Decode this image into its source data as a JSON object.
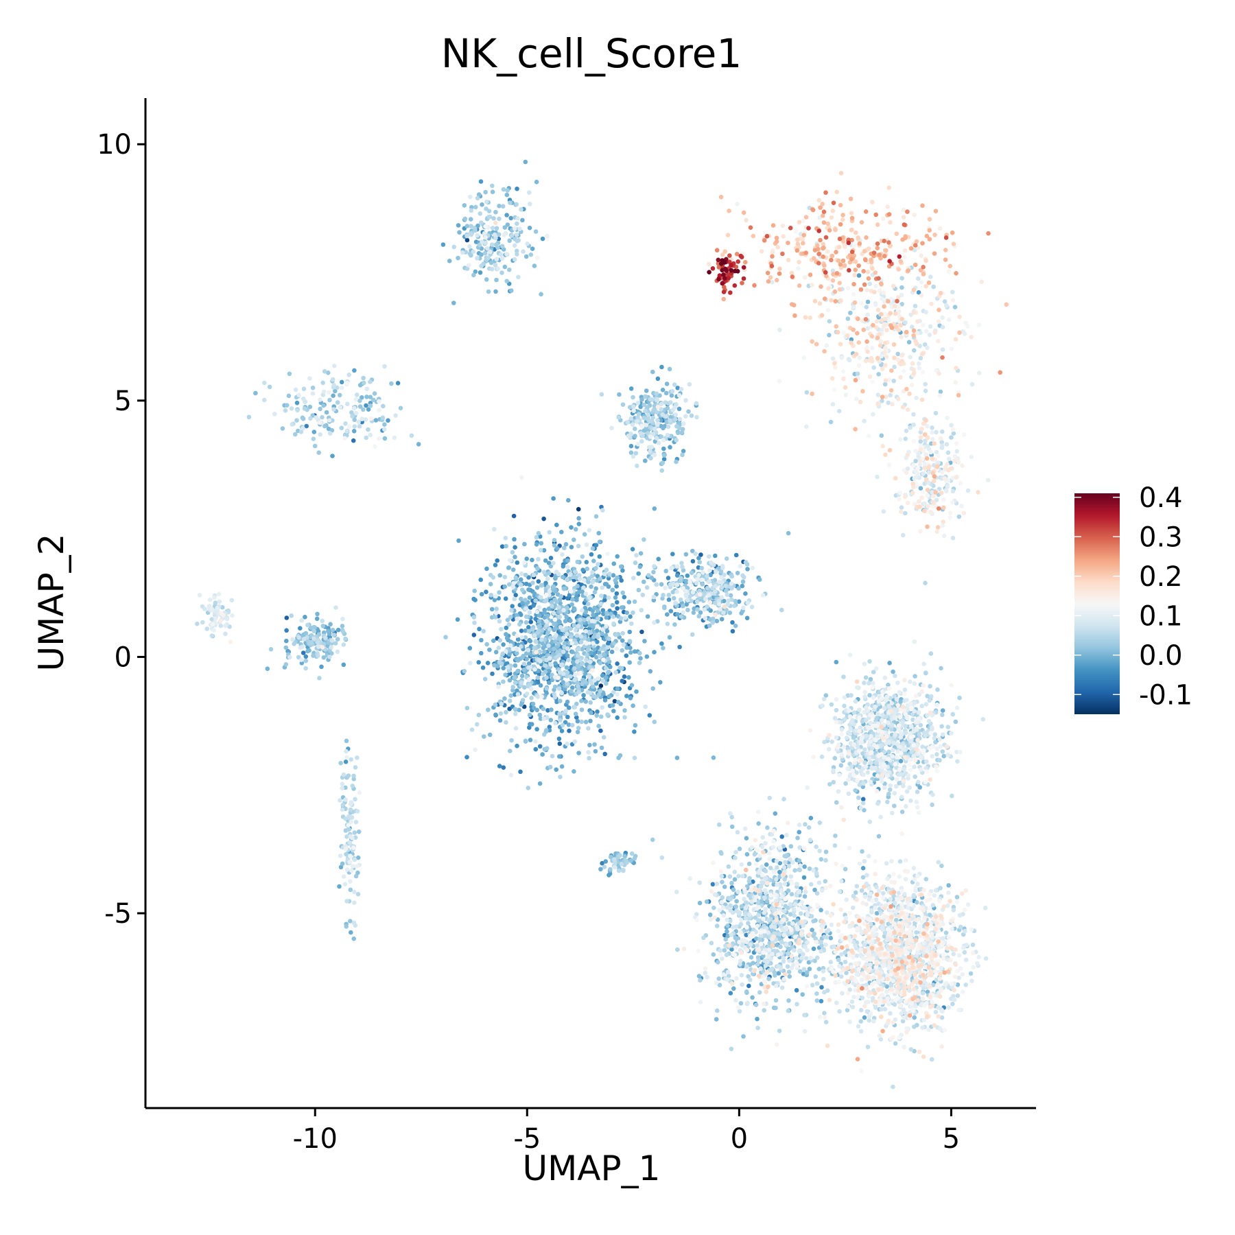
{
  "chart_data": {
    "type": "scatter",
    "title": "NK_cell_Score1",
    "xlabel": "UMAP_1",
    "ylabel": "UMAP_2",
    "xlim": [
      -14,
      7
    ],
    "ylim": [
      -8.8,
      10.9
    ],
    "xticks": [
      -10,
      -5,
      0,
      5
    ],
    "yticks": [
      -5,
      0,
      5,
      10
    ],
    "x_tick_labels": [
      "-10",
      "-5",
      "0",
      "5"
    ],
    "y_tick_labels": [
      "-5",
      "0",
      "5",
      "10"
    ],
    "grid": false,
    "legend": {
      "placement": "right",
      "type": "colorbar",
      "range": [
        -0.15,
        0.41
      ],
      "tick_values": [
        -0.1,
        0.0,
        0.1,
        0.2,
        0.3,
        0.4
      ],
      "tick_labels": [
        "-0.1",
        "0.0",
        "0.1",
        "0.2",
        "0.3",
        "0.4"
      ],
      "colors": [
        "#053061",
        "#2166ac",
        "#4393c3",
        "#92c5de",
        "#d1e5f0",
        "#f7f7f7",
        "#fddbc7",
        "#f4a582",
        "#d6604d",
        "#b2182b",
        "#67001f"
      ]
    },
    "clusters": [
      {
        "region": "top-center blob",
        "center": [
          -5.8,
          8.2
        ],
        "spread": [
          0.8,
          0.8
        ],
        "n": 220,
        "score_mean": 0.03,
        "score_sd": 0.04
      },
      {
        "region": "top-right upper arc",
        "center": [
          2.5,
          8.0
        ],
        "spread": [
          2.0,
          0.8
        ],
        "n": 320,
        "score_mean": 0.21,
        "score_sd": 0.05
      },
      {
        "region": "top-right dense spot",
        "center": [
          -0.3,
          7.5
        ],
        "spread": [
          0.3,
          0.3
        ],
        "n": 60,
        "score_mean": 0.34,
        "score_sd": 0.05
      },
      {
        "region": "top-right body",
        "center": [
          3.5,
          6.3
        ],
        "spread": [
          1.5,
          1.2
        ],
        "n": 380,
        "score_mean": 0.13,
        "score_sd": 0.06
      },
      {
        "region": "top-right lower tail",
        "center": [
          4.5,
          3.6
        ],
        "spread": [
          0.7,
          1.0
        ],
        "n": 260,
        "score_mean": 0.11,
        "score_sd": 0.05
      },
      {
        "region": "center-upper blob",
        "center": [
          -2.0,
          4.6
        ],
        "spread": [
          0.7,
          0.6
        ],
        "n": 260,
        "score_mean": 0.03,
        "score_sd": 0.04
      },
      {
        "region": "central curved body",
        "center": [
          -4.2,
          0.3
        ],
        "spread": [
          1.5,
          1.6
        ],
        "n": 1500,
        "score_mean": 0.0,
        "score_sd": 0.05
      },
      {
        "region": "central bridge",
        "center": [
          -0.8,
          1.3
        ],
        "spread": [
          1.0,
          0.6
        ],
        "n": 320,
        "score_mean": 0.03,
        "score_sd": 0.05
      },
      {
        "region": "left arc",
        "center": [
          -9.5,
          4.8
        ],
        "spread": [
          1.2,
          0.6
        ],
        "n": 180,
        "score_mean": 0.04,
        "score_sd": 0.04
      },
      {
        "region": "left lower cluster",
        "center": [
          -10.0,
          0.3
        ],
        "spread": [
          0.6,
          0.4
        ],
        "n": 160,
        "score_mean": 0.02,
        "score_sd": 0.04
      },
      {
        "region": "far-left spot",
        "center": [
          -12.3,
          0.8
        ],
        "spread": [
          0.3,
          0.3
        ],
        "n": 70,
        "score_mean": 0.08,
        "score_sd": 0.03
      },
      {
        "region": "lower-left strand",
        "center": [
          -9.2,
          -3.5
        ],
        "spread": [
          0.2,
          1.3
        ],
        "n": 120,
        "score_mean": 0.05,
        "score_sd": 0.04
      },
      {
        "region": "bottom-right upper blob",
        "center": [
          3.5,
          -1.6
        ],
        "spread": [
          1.1,
          1.0
        ],
        "n": 900,
        "score_mean": 0.07,
        "score_sd": 0.04
      },
      {
        "region": "bottom-right left lobe",
        "center": [
          0.7,
          -5.2
        ],
        "spread": [
          1.2,
          1.4
        ],
        "n": 1000,
        "score_mean": 0.05,
        "score_sd": 0.05
      },
      {
        "region": "bottom-right right lobe",
        "center": [
          3.8,
          -5.8
        ],
        "spread": [
          1.2,
          1.2
        ],
        "n": 1400,
        "score_mean": 0.1,
        "score_sd": 0.05
      },
      {
        "region": "bottom-right small outlier",
        "center": [
          -2.8,
          -4.0
        ],
        "spread": [
          0.3,
          0.2
        ],
        "n": 50,
        "score_mean": 0.02,
        "score_sd": 0.03
      }
    ]
  }
}
